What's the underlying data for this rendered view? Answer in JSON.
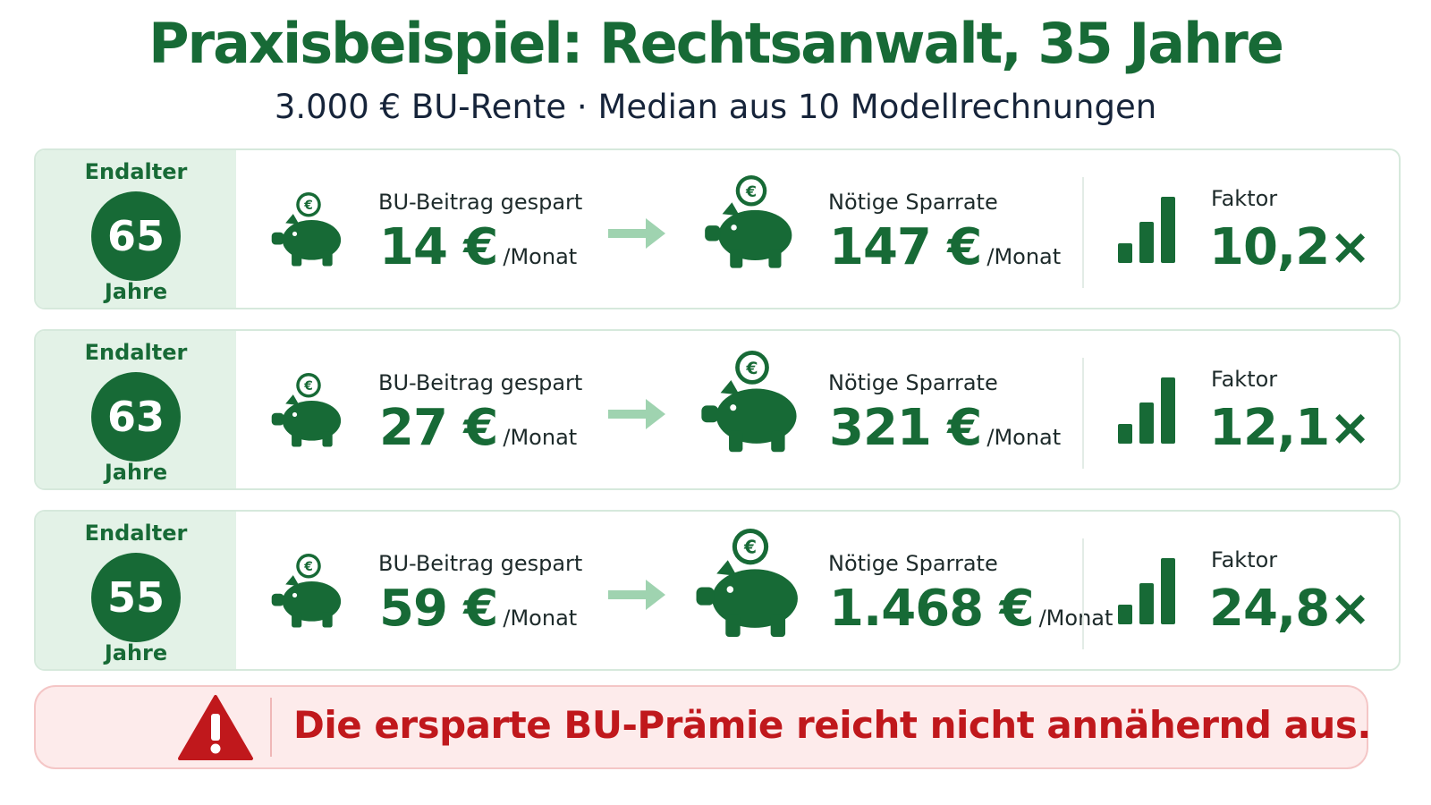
{
  "header": {
    "title": "Praxisbeispiel: Rechtsanwalt, 35 Jahre",
    "subtitle": "3.000 € BU-Rente · Median aus 10 Modellrechnungen"
  },
  "labels": {
    "age_top": "Endalter",
    "age_bottom": "Jahre",
    "saved_label": "BU-Beitrag gespart",
    "needed_label": "Nötige Sparrate",
    "unit": "/Monat",
    "factor_label": "Faktor",
    "euro_symbol": "€"
  },
  "rows": [
    {
      "age": "65",
      "saved": "14 €",
      "needed": "147 €",
      "factor": "10,2×"
    },
    {
      "age": "63",
      "saved": "27 €",
      "needed": "321 €",
      "factor": "12,1×"
    },
    {
      "age": "55",
      "saved": "59 €",
      "needed": "1.468 €",
      "factor": "24,8×"
    }
  ],
  "warning": {
    "text": "Die ersparte BU-Prämie reicht nicht annähernd aus."
  },
  "colors": {
    "brand_green": "#176a36",
    "panel_green": "#e3f2e7",
    "arrow_green": "#9fd3b0",
    "warning_red": "#c0181c",
    "warning_bg": "#fdebeb"
  },
  "icons": [
    "piggy-bank-icon",
    "arrow-right-icon",
    "bar-chart-icon",
    "warning-icon"
  ]
}
